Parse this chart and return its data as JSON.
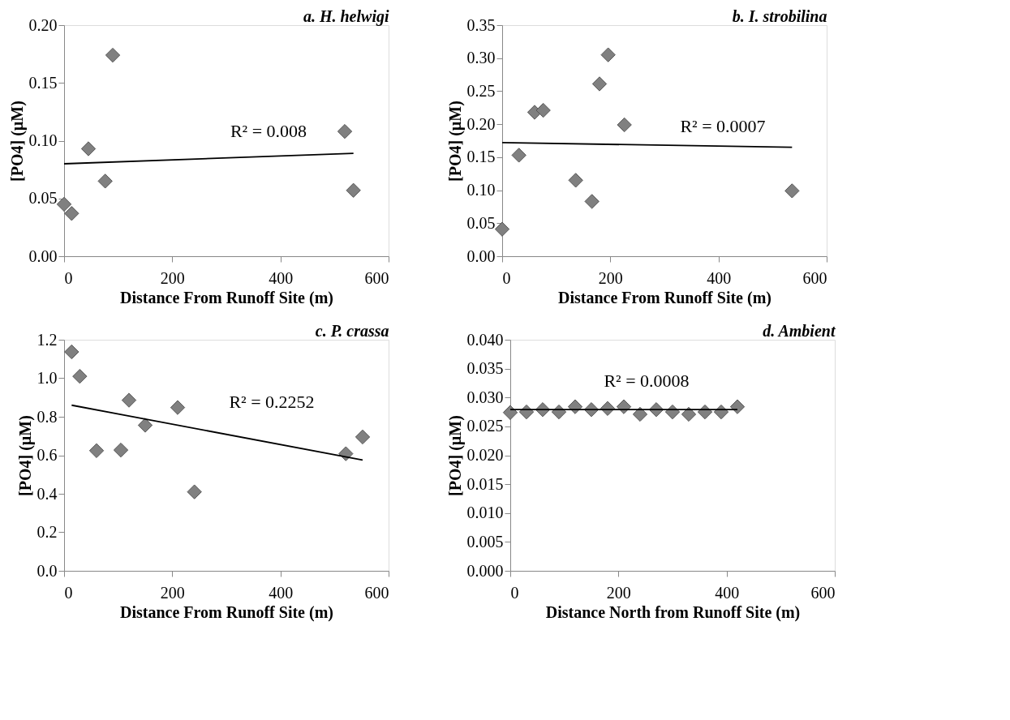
{
  "chart_data": [
    {
      "type": "scatter",
      "title": "a. H. helwigi",
      "xlabel": "Distance From Runoff Site (m)",
      "ylabel": "[PO4] (µM)",
      "xlim": [
        0,
        600
      ],
      "xticks": [
        0,
        200,
        400,
        600
      ],
      "ylim": [
        0,
        0.2
      ],
      "yticks": [
        {
          "value": 0,
          "label": "0.00"
        },
        {
          "value": 0.05,
          "label": "0.05"
        },
        {
          "value": 0.1,
          "label": "0.10"
        },
        {
          "value": 0.15,
          "label": "0.15"
        },
        {
          "value": 0.2,
          "label": "0.20"
        }
      ],
      "marker": "diamond",
      "grid": false,
      "series": [
        {
          "color": "#808080",
          "x": [
            0,
            14,
            45,
            76,
            90,
            519,
            535
          ],
          "values": [
            0.045,
            0.037,
            0.093,
            0.065,
            0.174,
            0.108,
            0.057
          ]
        },
        {
          "type": "line",
          "marker": "none",
          "color": "#000000",
          "x": [
            0,
            535
          ],
          "values": [
            0.08,
            0.089
          ]
        }
      ],
      "annotations": [
        "R² = 0.008"
      ]
    },
    {
      "type": "scatter",
      "title": "b. I. strobilina",
      "xlabel": "Distance From Runoff Site (m)",
      "ylabel": "[PO4] (µM)",
      "xlim": [
        0,
        600
      ],
      "xticks": [
        0,
        200,
        400,
        600
      ],
      "ylim": [
        0,
        0.35
      ],
      "yticks": [
        {
          "value": 0,
          "label": "0.00"
        },
        {
          "value": 0.05,
          "label": "0.05"
        },
        {
          "value": 0.1,
          "label": "0.10"
        },
        {
          "value": 0.15,
          "label": "0.15"
        },
        {
          "value": 0.2,
          "label": "0.20"
        },
        {
          "value": 0.25,
          "label": "0.25"
        },
        {
          "value": 0.3,
          "label": "0.30"
        },
        {
          "value": 0.35,
          "label": "0.35"
        }
      ],
      "marker": "diamond",
      "grid": false,
      "series": [
        {
          "color": "#808080",
          "x": [
            0,
            31,
            60,
            76,
            136,
            166,
            180,
            196,
            226,
            536
          ],
          "values": [
            0.041,
            0.153,
            0.218,
            0.221,
            0.115,
            0.083,
            0.261,
            0.305,
            0.199,
            0.099
          ]
        },
        {
          "type": "line",
          "marker": "none",
          "color": "#000000",
          "x": [
            0,
            536
          ],
          "values": [
            0.172,
            0.165
          ]
        }
      ],
      "annotations": [
        "R² = 0.0007"
      ]
    },
    {
      "type": "scatter",
      "title": "c. P. crassa",
      "xlabel": "Distance From Runoff Site (m)",
      "ylabel": "[PO4] (µM)",
      "xlim": [
        0,
        600
      ],
      "xticks": [
        0,
        200,
        400,
        600
      ],
      "ylim": [
        0,
        1.2
      ],
      "yticks": [
        {
          "value": 0,
          "label": "0.0"
        },
        {
          "value": 0.2,
          "label": "0.2"
        },
        {
          "value": 0.4,
          "label": "0.4"
        },
        {
          "value": 0.6,
          "label": "0.6"
        },
        {
          "value": 0.8,
          "label": "0.8"
        },
        {
          "value": 1,
          "label": "1.0"
        },
        {
          "value": 1.2,
          "label": "1.2"
        }
      ],
      "marker": "diamond",
      "grid": false,
      "series": [
        {
          "color": "#808080",
          "x": [
            14,
            29,
            60,
            105,
            120,
            150,
            210,
            241,
            521,
            552
          ],
          "values": [
            1.137,
            1.01,
            0.624,
            0.627,
            0.886,
            0.756,
            0.848,
            0.41,
            0.608,
            0.695
          ]
        },
        {
          "type": "line",
          "marker": "none",
          "color": "#000000",
          "x": [
            14,
            552
          ],
          "values": [
            0.86,
            0.575
          ]
        }
      ],
      "annotations": [
        "R² = 0.2252"
      ]
    },
    {
      "type": "scatter",
      "title": "d. Ambient",
      "xlabel": "Distance North from Runoff Site (m)",
      "ylabel": "[PO4] (µM)",
      "xlim": [
        0,
        600
      ],
      "xticks": [
        0,
        200,
        400,
        600
      ],
      "ylim": [
        0,
        0.04
      ],
      "yticks": [
        {
          "value": 0,
          "label": "0.000"
        },
        {
          "value": 0.005,
          "label": "0.005"
        },
        {
          "value": 0.01,
          "label": "0.010"
        },
        {
          "value": 0.015,
          "label": "0.015"
        },
        {
          "value": 0.02,
          "label": "0.020"
        },
        {
          "value": 0.025,
          "label": "0.025"
        },
        {
          "value": 0.03,
          "label": "0.030"
        },
        {
          "value": 0.035,
          "label": "0.035"
        },
        {
          "value": 0.04,
          "label": "0.040"
        }
      ],
      "marker": "diamond",
      "grid": false,
      "series": [
        {
          "color": "#808080",
          "x": [
            0,
            30,
            60,
            90,
            120,
            150,
            180,
            210,
            240,
            270,
            300,
            330,
            360,
            390,
            420
          ],
          "values": [
            0.0274,
            0.0275,
            0.0279,
            0.0275,
            0.0284,
            0.0279,
            0.0281,
            0.0284,
            0.0271,
            0.0279,
            0.0275,
            0.0271,
            0.0275,
            0.0275,
            0.0284
          ]
        },
        {
          "type": "line",
          "marker": "none",
          "color": "#000000",
          "x": [
            0,
            420
          ],
          "values": [
            0.0279,
            0.0279
          ]
        }
      ],
      "annotations": [
        "R² = 0.0008"
      ]
    }
  ]
}
